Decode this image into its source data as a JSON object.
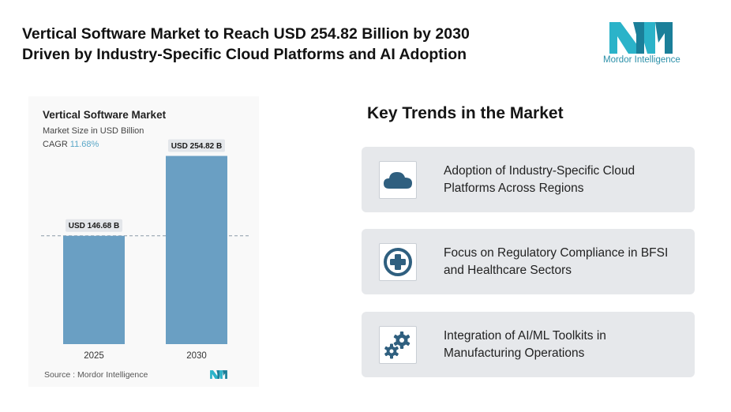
{
  "headline": {
    "line1": "Vertical Software Market to Reach USD 254.82 Billion by 2030",
    "line2": "Driven by Industry-Specific Cloud Platforms and AI Adoption"
  },
  "brand": {
    "logo_text": "Mordor Intelligence",
    "logo_icon": "mordor-logo-icon",
    "accent": "#2a8fa8"
  },
  "chart_data": {
    "type": "bar",
    "title": "Vertical Software Market",
    "subtitle": "Market Size in USD Billion",
    "cagr_label": "CAGR",
    "cagr_value": "11.68%",
    "categories": [
      "2025",
      "2030"
    ],
    "values": [
      146.68,
      254.82
    ],
    "data_labels": [
      "USD 146.68 B",
      "USD 254.82 B"
    ],
    "ylim": [
      0,
      280
    ],
    "reference_line": "dashed line at 2025 value",
    "bar_color": "#6a9fc3",
    "source": "Source : Mordor Intelligence"
  },
  "trends": {
    "title": "Key Trends in the Market",
    "items": [
      {
        "icon": "cloud-icon",
        "text": "Adoption of Industry-Specific Cloud Platforms Across Regions"
      },
      {
        "icon": "medical-cross-icon",
        "text": "Focus on Regulatory Compliance in BFSI and Healthcare Sectors"
      },
      {
        "icon": "gears-icon",
        "text": "Integration of AI/ML Toolkits in Manufacturing Operations"
      }
    ],
    "icon_color": "#2f5f7f"
  }
}
